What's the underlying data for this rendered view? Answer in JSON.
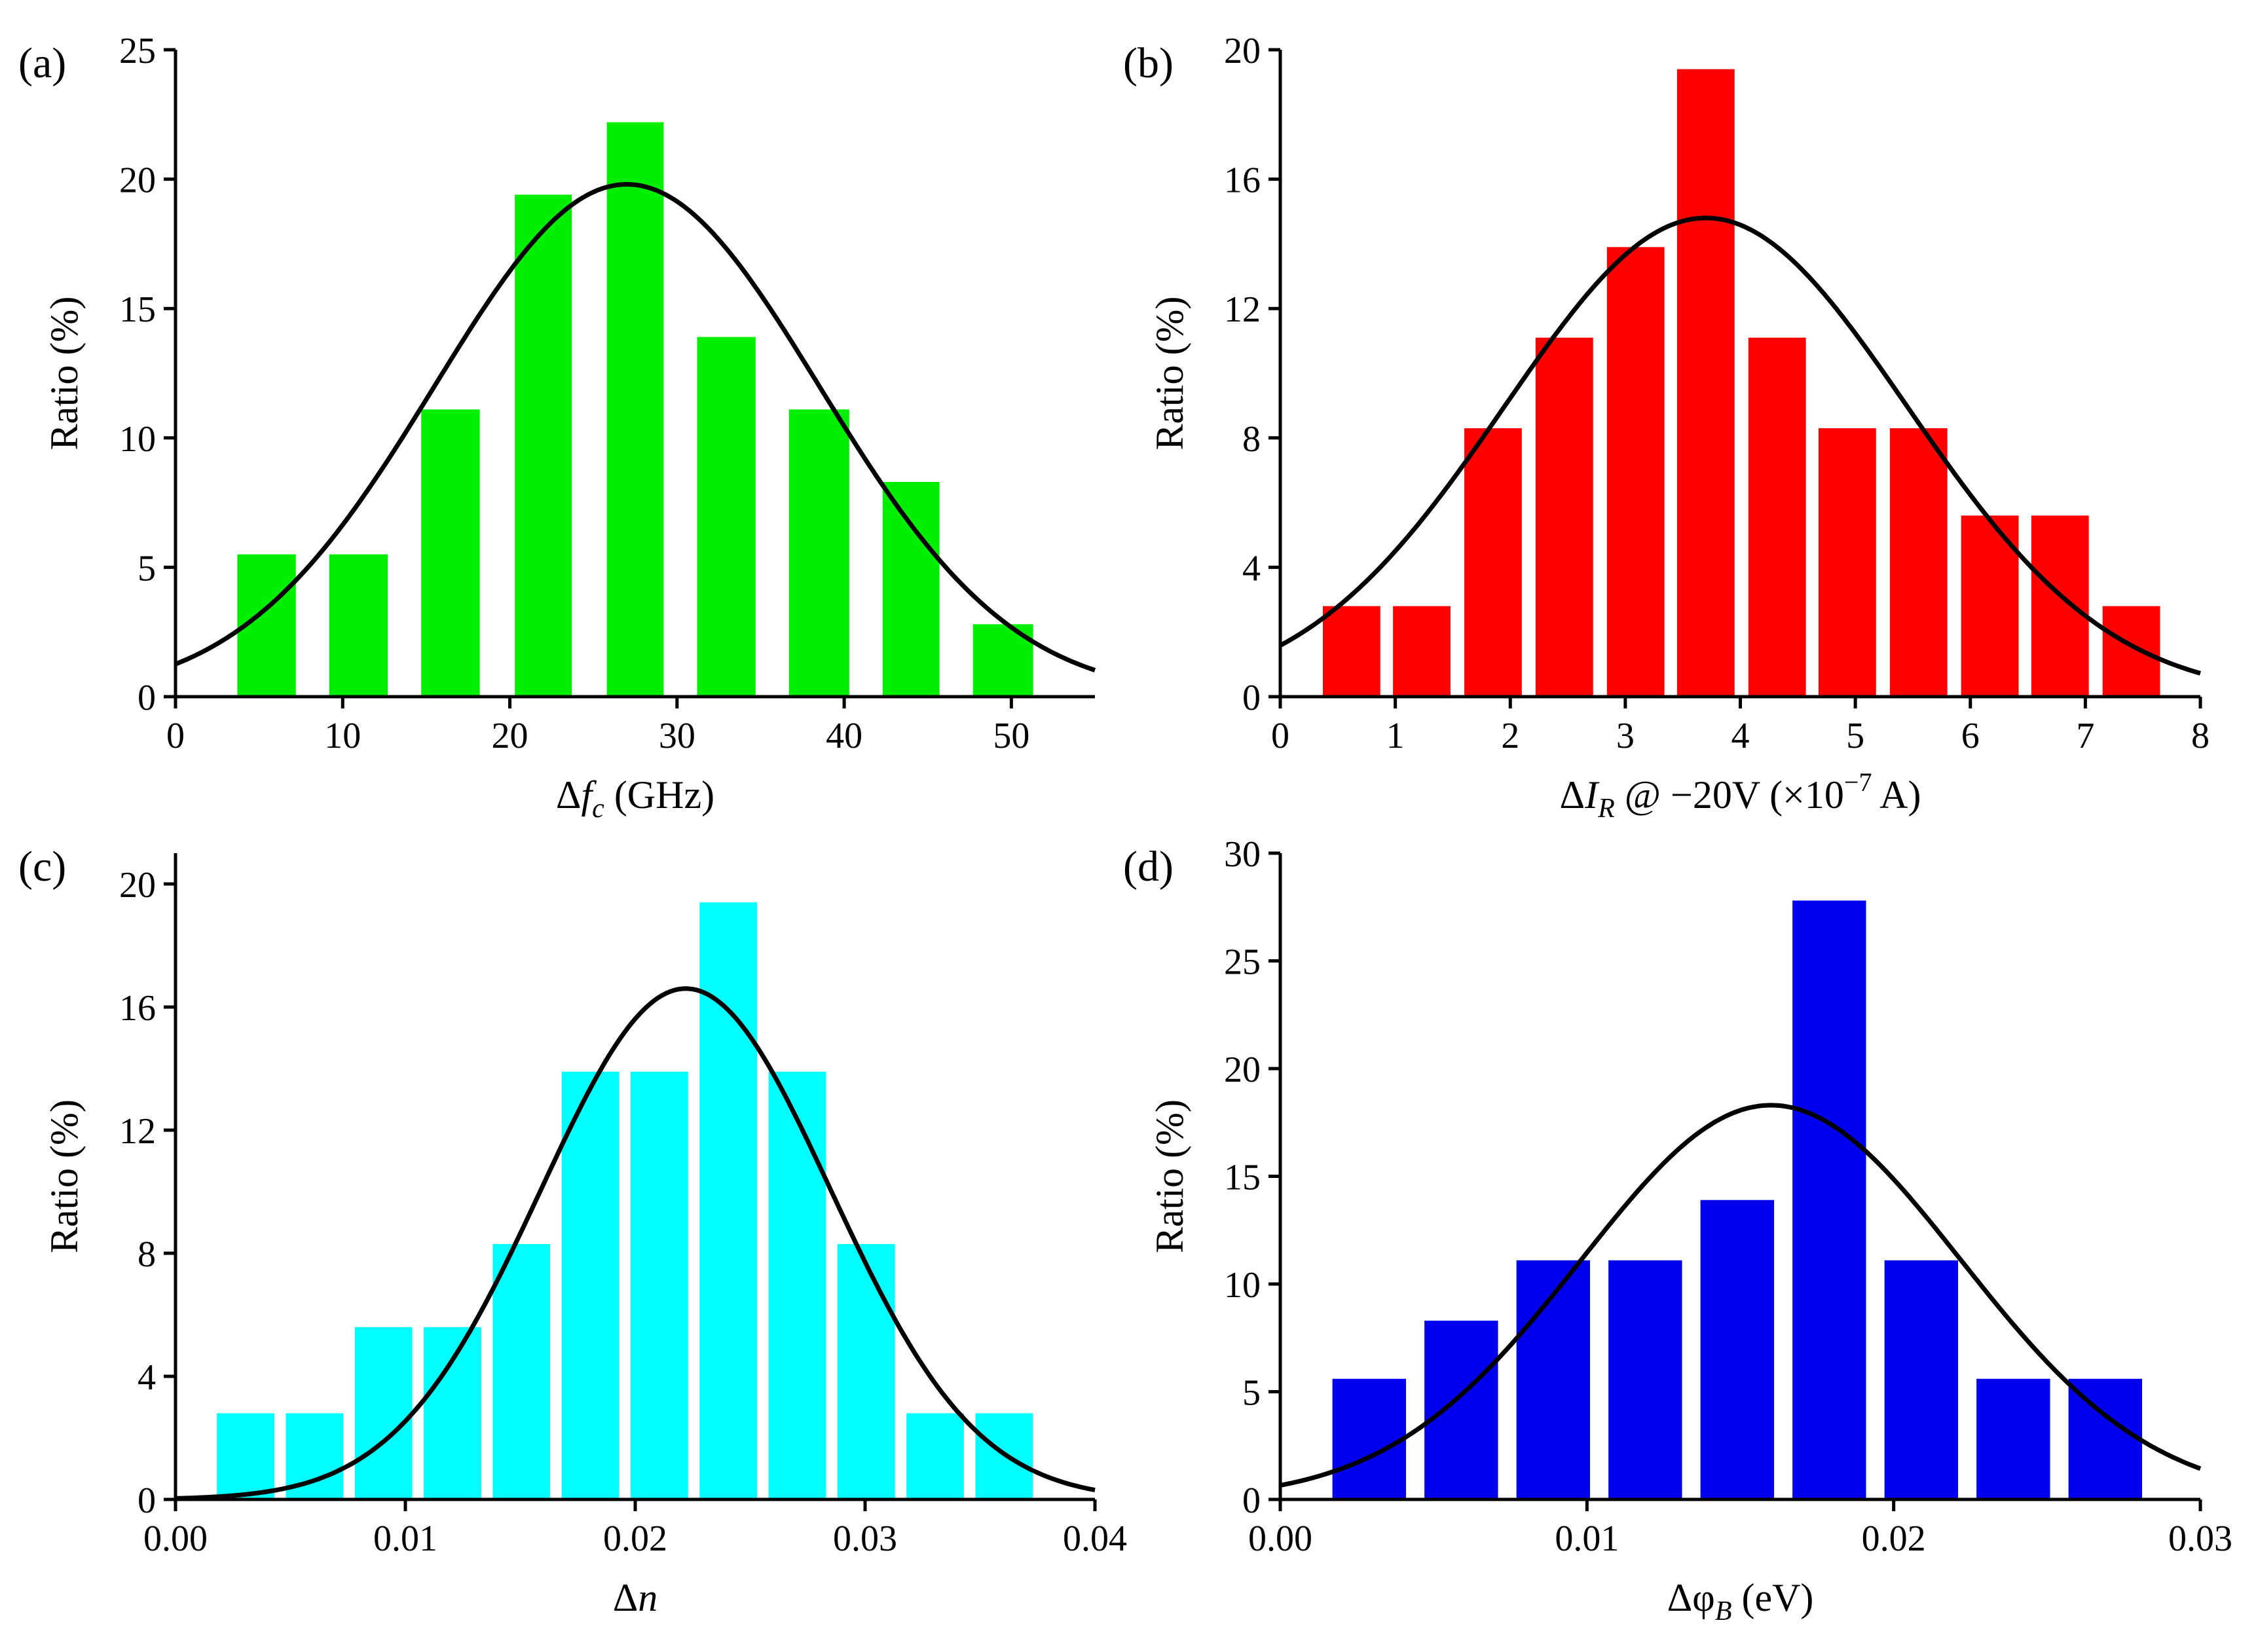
{
  "chart_data": [
    {
      "type": "bar",
      "panel_label": "(a)",
      "title": "",
      "ylabel": "Ratio (%)",
      "xlabel_parts": [
        {
          "text": "Δ",
          "style": "normal"
        },
        {
          "text": "f",
          "style": "italic"
        },
        {
          "text": "c",
          "style": "italic-sub"
        },
        {
          "text": " (GHz)",
          "style": "normal"
        }
      ],
      "xlim": [
        0,
        55
      ],
      "ylim": [
        0,
        25
      ],
      "xticks": [
        0,
        10,
        20,
        30,
        40,
        50
      ],
      "xtick_labels": [
        "0",
        "10",
        "20",
        "30",
        "40",
        "50"
      ],
      "yticks": [
        0,
        5,
        10,
        15,
        20,
        25
      ],
      "ytick_labels": [
        "0",
        "5",
        "10",
        "15",
        "20",
        "25"
      ],
      "bar_color": "#00ee00",
      "bar_edges": [
        [
          3.7,
          7.2
        ],
        [
          9.2,
          12.7
        ],
        [
          14.7,
          18.2
        ],
        [
          20.3,
          23.7
        ],
        [
          25.8,
          29.2
        ],
        [
          31.2,
          34.7
        ],
        [
          36.7,
          40.3
        ],
        [
          42.3,
          45.7
        ],
        [
          47.7,
          51.3
        ]
      ],
      "values": [
        5.5,
        5.5,
        11.1,
        19.4,
        22.2,
        13.9,
        11.1,
        8.3,
        2.8
      ],
      "gaussian_fit": {
        "mean": 27,
        "sigma": 11.5,
        "peak": 19.8,
        "baseline": 0
      }
    },
    {
      "type": "bar",
      "panel_label": "(b)",
      "title": "",
      "ylabel": "Ratio (%)",
      "xlabel_parts": [
        {
          "text": "Δ",
          "style": "normal"
        },
        {
          "text": "I",
          "style": "italic"
        },
        {
          "text": "R",
          "style": "italic-sub"
        },
        {
          "text": " @ −20V (×10",
          "style": "normal"
        },
        {
          "text": "−7",
          "style": "sup"
        },
        {
          "text": " A)",
          "style": "normal"
        }
      ],
      "xlim": [
        0,
        8
      ],
      "ylim": [
        0,
        20
      ],
      "xticks": [
        0,
        1,
        2,
        3,
        4,
        5,
        6,
        7,
        8
      ],
      "xtick_labels": [
        "0",
        "1",
        "2",
        "3",
        "4",
        "5",
        "6",
        "7",
        "8"
      ],
      "yticks": [
        0,
        4,
        8,
        12,
        16,
        20
      ],
      "ytick_labels": [
        "0",
        "4",
        "8",
        "12",
        "16",
        "20"
      ],
      "bar_color": "#ff0000",
      "bar_edges": [
        [
          0.37,
          0.87
        ],
        [
          0.98,
          1.48
        ],
        [
          1.6,
          2.1
        ],
        [
          2.22,
          2.72
        ],
        [
          2.84,
          3.34
        ],
        [
          3.45,
          3.95
        ],
        [
          4.07,
          4.57
        ],
        [
          4.68,
          5.18
        ],
        [
          5.3,
          5.8
        ],
        [
          5.92,
          6.42
        ],
        [
          6.53,
          7.03
        ],
        [
          7.15,
          7.65
        ]
      ],
      "values": [
        2.8,
        2.8,
        8.3,
        11.1,
        13.9,
        19.4,
        11.1,
        8.3,
        8.3,
        5.6,
        5.6,
        2.8
      ],
      "gaussian_fit": {
        "mean": 3.7,
        "sigma": 1.75,
        "peak": 14.8,
        "baseline": 0
      }
    },
    {
      "type": "bar",
      "panel_label": "(c)",
      "title": "",
      "ylabel": "Ratio (%)",
      "xlabel_parts": [
        {
          "text": "Δ",
          "style": "normal"
        },
        {
          "text": "n",
          "style": "italic"
        }
      ],
      "xlim": [
        0,
        0.04
      ],
      "ylim": [
        0,
        21
      ],
      "xticks": [
        0,
        0.01,
        0.02,
        0.03,
        0.04
      ],
      "xtick_labels": [
        "0.00",
        "0.01",
        "0.02",
        "0.03",
        "0.04"
      ],
      "yticks": [
        0,
        4,
        8,
        12,
        16,
        20
      ],
      "ytick_labels": [
        "0",
        "4",
        "8",
        "12",
        "16",
        "20"
      ],
      "bar_color": "#00ffff",
      "bar_edges": [
        [
          0.0018,
          0.0043
        ],
        [
          0.0048,
          0.0073
        ],
        [
          0.0078,
          0.0103
        ],
        [
          0.0108,
          0.0133
        ],
        [
          0.0138,
          0.0163
        ],
        [
          0.0168,
          0.0193
        ],
        [
          0.0198,
          0.0223
        ],
        [
          0.0228,
          0.0253
        ],
        [
          0.0258,
          0.0283
        ],
        [
          0.0288,
          0.0313
        ],
        [
          0.0318,
          0.0343
        ],
        [
          0.0348,
          0.0373
        ]
      ],
      "values": [
        2.8,
        2.8,
        5.6,
        5.6,
        8.3,
        13.9,
        13.9,
        19.4,
        13.9,
        8.3,
        2.8,
        2.8
      ],
      "gaussian_fit": {
        "mean": 0.0222,
        "sigma": 0.0063,
        "peak": 16.6,
        "baseline": 0
      }
    },
    {
      "type": "bar",
      "panel_label": "(d)",
      "title": "",
      "ylabel": "Ratio (%)",
      "xlabel_parts": [
        {
          "text": "Δφ",
          "style": "normal"
        },
        {
          "text": "B",
          "style": "italic-sub"
        },
        {
          "text": " (eV)",
          "style": "normal"
        }
      ],
      "xlim": [
        0,
        0.03
      ],
      "ylim": [
        0,
        30
      ],
      "xticks": [
        0,
        0.01,
        0.02,
        0.03
      ],
      "xtick_labels": [
        "0.00",
        "0.01",
        "0.02",
        "0.03"
      ],
      "yticks": [
        0,
        5,
        10,
        15,
        20,
        25,
        30
      ],
      "ytick_labels": [
        "0",
        "5",
        "10",
        "15",
        "20",
        "25",
        "30"
      ],
      "bar_color": "#0000ee",
      "bar_edges": [
        [
          0.0017,
          0.0041
        ],
        [
          0.0047,
          0.0071
        ],
        [
          0.0077,
          0.0101
        ],
        [
          0.0107,
          0.0131
        ],
        [
          0.0137,
          0.0161
        ],
        [
          0.0167,
          0.0191
        ],
        [
          0.0197,
          0.0221
        ],
        [
          0.0227,
          0.0251
        ],
        [
          0.0257,
          0.0281
        ]
      ],
      "values": [
        5.6,
        8.3,
        11.1,
        11.1,
        13.9,
        27.8,
        11.1,
        5.6,
        5.6
      ],
      "gaussian_fit": {
        "mean": 0.016,
        "sigma": 0.0062,
        "peak": 18.3,
        "baseline": 0
      }
    }
  ]
}
